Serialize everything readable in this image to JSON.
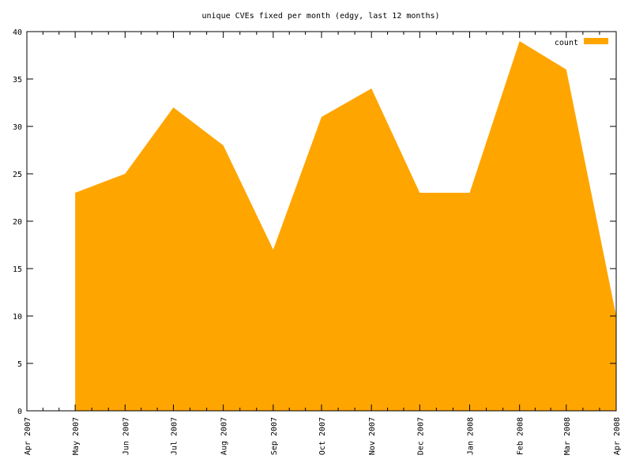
{
  "chart_data": {
    "type": "area",
    "title": "unique CVEs fixed per month (edgy, last 12 months)",
    "xlabel": "",
    "ylabel": "",
    "x": [
      "2007-04-01",
      "2007-05-01",
      "2007-06-01",
      "2007-07-01",
      "2007-08-01",
      "2007-09-01",
      "2007-10-01",
      "2007-11-01",
      "2007-12-01",
      "2008-01-01",
      "2008-02-01",
      "2008-03-01",
      "2008-04-01"
    ],
    "x_tick_labels": [
      "Apr 2007",
      "May 2007",
      "Jun 2007",
      "Jul 2007",
      "Aug 2007",
      "Sep 2007",
      "Oct 2007",
      "Nov 2007",
      "Dec 2007",
      "Jan 2008",
      "Feb 2008",
      "Mar 2008",
      "Apr 2008"
    ],
    "series": [
      {
        "name": "count",
        "color": "#ffa500",
        "x": [
          "2007-05-01",
          "2007-06-01",
          "2007-07-01",
          "2007-08-01",
          "2007-09-01",
          "2007-10-01",
          "2007-11-01",
          "2007-12-01",
          "2008-01-01",
          "2008-02-01",
          "2008-03-01",
          "2008-04-01"
        ],
        "values": [
          23,
          25,
          32,
          28,
          17,
          31,
          34,
          23,
          23,
          39,
          36,
          10
        ]
      }
    ],
    "ylim": [
      0,
      40
    ],
    "yticks": [
      0,
      5,
      10,
      15,
      20,
      25,
      30,
      35,
      40
    ],
    "xlim": [
      "2007-04-01",
      "2008-04-01"
    ],
    "grid": false,
    "legend": "top-right"
  }
}
